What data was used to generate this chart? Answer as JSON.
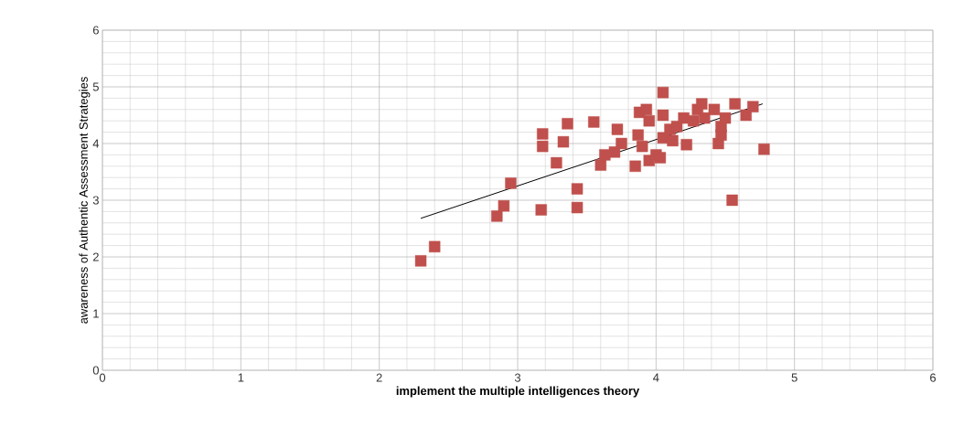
{
  "chart_data": {
    "type": "scatter",
    "xlabel": "implement the multiple intelligences theory",
    "ylabel": "awareness of Authentic Assessment Strategies",
    "xlim": [
      0,
      6
    ],
    "ylim": [
      0,
      6
    ],
    "xticks": [
      0,
      1,
      2,
      3,
      4,
      5,
      6
    ],
    "yticks": [
      0,
      1,
      2,
      3,
      4,
      5,
      6
    ],
    "grid": true,
    "marker": "square",
    "series": [
      {
        "color": "#c0504d",
        "x": [
          2.3,
          2.4,
          2.85,
          2.9,
          2.95,
          3.17,
          3.18,
          3.18,
          3.28,
          3.33,
          3.36,
          3.43,
          3.43,
          3.55,
          3.6,
          3.63,
          3.7,
          3.72,
          3.75,
          3.85,
          3.87,
          3.88,
          3.9,
          3.93,
          3.95,
          3.95,
          4.0,
          4.03,
          4.05,
          4.05,
          4.05,
          4.1,
          4.12,
          4.15,
          4.2,
          4.22,
          4.27,
          4.3,
          4.33,
          4.35,
          4.42,
          4.45,
          4.47,
          4.47,
          4.5,
          4.55,
          4.57,
          4.65,
          4.7,
          4.78
        ],
        "values": [
          1.93,
          2.18,
          2.72,
          2.9,
          3.3,
          2.83,
          4.17,
          3.95,
          3.66,
          4.03,
          4.35,
          3.2,
          2.87,
          4.38,
          3.62,
          3.8,
          3.85,
          4.25,
          4.0,
          3.6,
          4.15,
          4.55,
          3.95,
          4.6,
          3.7,
          4.4,
          3.8,
          3.75,
          4.5,
          4.9,
          4.1,
          4.25,
          4.05,
          4.3,
          4.45,
          3.98,
          4.4,
          4.6,
          4.7,
          4.45,
          4.6,
          4.0,
          4.15,
          4.3,
          4.45,
          3.0,
          4.7,
          4.5,
          4.65,
          3.9
        ]
      },
      {
        "type": "line",
        "color": "#000000",
        "marker": "none",
        "x": [
          2.3,
          4.77
        ],
        "values": [
          2.68,
          4.7
        ]
      }
    ]
  }
}
